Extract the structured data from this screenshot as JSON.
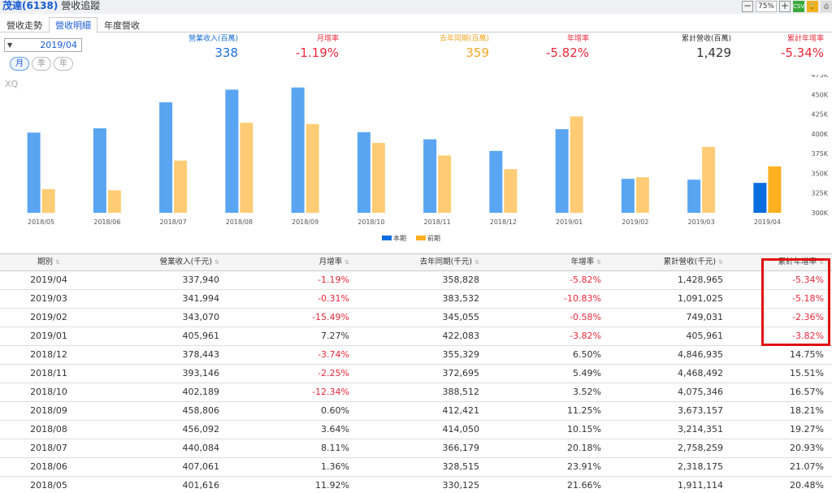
{
  "header": {
    "company": "茂達(6138)",
    "page_title": "營收追蹤",
    "zoom": "75%",
    "csv_label": "CSV"
  },
  "tabs": [
    "營收走勢",
    "營收明細",
    "年度營收"
  ],
  "date_selector": {
    "value": "2019/04"
  },
  "period_buttons": [
    "月",
    "季",
    "年"
  ],
  "summary": [
    {
      "label": "營業收入(百萬)",
      "value": "338",
      "color": "#1a70d6"
    },
    {
      "label": "月增率",
      "value": "-1.19%",
      "color": "#e8283a"
    },
    {
      "label": "去年同期(百萬)",
      "value": "359",
      "color": "#f5a623"
    },
    {
      "label": "年增率",
      "value": "-5.82%",
      "color": "#e8283a"
    },
    {
      "label": "累計營收(百萬)",
      "value": "1,429",
      "color": "#333333"
    },
    {
      "label": "累計年增率",
      "value": "-5.34%",
      "color": "#e8283a"
    }
  ],
  "chart_data": {
    "type": "bar",
    "watermark": "XQ",
    "categories": [
      "2018/05",
      "2018/06",
      "2018/07",
      "2018/08",
      "2018/09",
      "2018/10",
      "2018/11",
      "2018/12",
      "2019/01",
      "2019/02",
      "2019/03",
      "2019/04"
    ],
    "series": [
      {
        "name": "本期",
        "color": "#5aa5f2",
        "highlight_color": "#0a6ee0",
        "values": [
          401616,
          407061,
          440084,
          456092,
          458806,
          402189,
          393146,
          378443,
          405961,
          343070,
          341994,
          337940
        ]
      },
      {
        "name": "前期",
        "color": "#ffcc75",
        "highlight_color": "#ffb020",
        "values": [
          330125,
          328515,
          366179,
          414050,
          412421,
          388512,
          372695,
          355329,
          422083,
          345055,
          383532,
          358828
        ]
      }
    ],
    "y_ticks": [
      "475K",
      "450K",
      "425K",
      "400K",
      "375K",
      "350K",
      "325K",
      "300K"
    ],
    "ylim": [
      300000,
      475000
    ]
  },
  "table": {
    "headers": [
      "期別",
      "營業收入(千元)",
      "月增率",
      "去年同期(千元)",
      "年增率",
      "累計營收(千元)",
      "累計年增率"
    ],
    "rows": [
      [
        "2019/04",
        "337,940",
        "-1.19%",
        "358,828",
        "-5.82%",
        "1,428,965",
        "-5.34%"
      ],
      [
        "2019/03",
        "341,994",
        "-0.31%",
        "383,532",
        "-10.83%",
        "1,091,025",
        "-5.18%"
      ],
      [
        "2019/02",
        "343,070",
        "-15.49%",
        "345,055",
        "-0.58%",
        "749,031",
        "-2.36%"
      ],
      [
        "2019/01",
        "405,961",
        "7.27%",
        "422,083",
        "-3.82%",
        "405,961",
        "-3.82%"
      ],
      [
        "2018/12",
        "378,443",
        "-3.74%",
        "355,329",
        "6.50%",
        "4,846,935",
        "14.75%"
      ],
      [
        "2018/11",
        "393,146",
        "-2.25%",
        "372,695",
        "5.49%",
        "4,468,492",
        "15.51%"
      ],
      [
        "2018/10",
        "402,189",
        "-12.34%",
        "388,512",
        "3.52%",
        "4,075,346",
        "16.57%"
      ],
      [
        "2018/09",
        "458,806",
        "0.60%",
        "412,421",
        "11.25%",
        "3,673,157",
        "18.21%"
      ],
      [
        "2018/08",
        "456,092",
        "3.64%",
        "414,050",
        "10.15%",
        "3,214,351",
        "19.27%"
      ],
      [
        "2018/07",
        "440,084",
        "8.11%",
        "366,179",
        "20.18%",
        "2,758,259",
        "20.93%"
      ],
      [
        "2018/06",
        "407,061",
        "1.36%",
        "328,515",
        "23.91%",
        "2,318,175",
        "21.07%"
      ],
      [
        "2018/05",
        "401,616",
        "11.92%",
        "330,125",
        "21.66%",
        "1,911,114",
        "20.48%"
      ]
    ]
  }
}
